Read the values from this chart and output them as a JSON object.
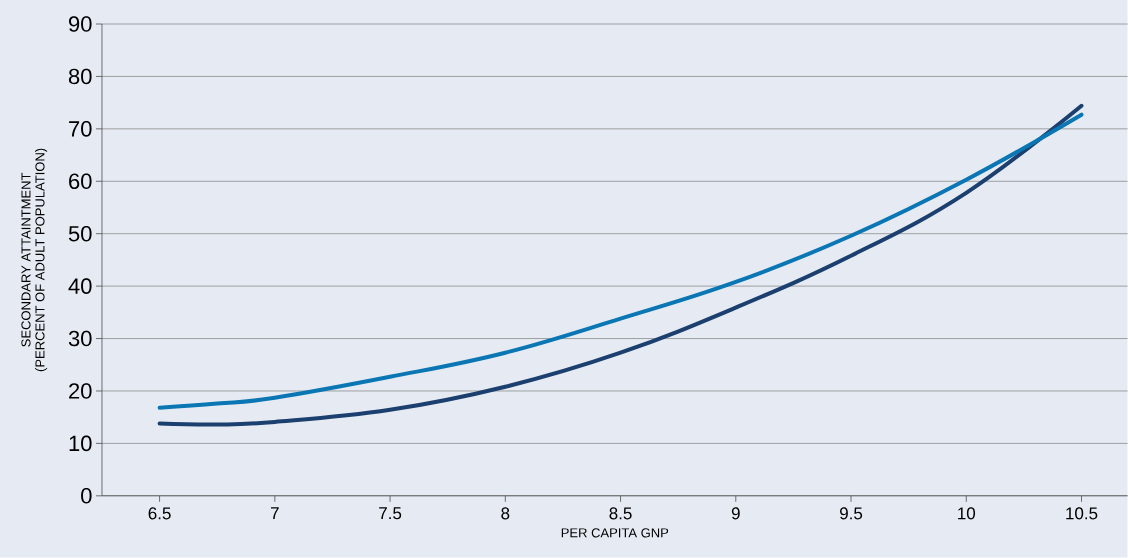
{
  "chart_data": {
    "type": "line",
    "xlabel": "PER CAPITA GNP",
    "ylabel": "SECONDARY ATTAINTMENT\n(PERCENT OF ADULT POPULATION)",
    "xlim": [
      6.25,
      10.7
    ],
    "ylim": [
      0,
      90
    ],
    "xticks": [
      6.5,
      7,
      7.5,
      8,
      8.5,
      9,
      9.5,
      10,
      10.5
    ],
    "yticks": [
      0,
      10,
      20,
      30,
      40,
      50,
      60,
      70,
      80,
      90
    ],
    "grid": "y",
    "marker": "none",
    "line_style": "solid",
    "x": [
      6.5,
      6.75,
      7,
      7.5,
      8,
      8.5,
      9,
      9.5,
      10,
      10.5
    ],
    "series": [
      {
        "color": "#1b3f6e",
        "values": [
          13.8,
          13.6,
          14.1,
          16.4,
          20.8,
          27.3,
          35.9,
          45.8,
          57.8,
          74.4
        ]
      },
      {
        "color": "#0b76b4",
        "values": [
          16.8,
          17.6,
          18.7,
          22.7,
          27.3,
          33.8,
          40.8,
          49.6,
          60.3,
          72.7
        ]
      }
    ]
  }
}
